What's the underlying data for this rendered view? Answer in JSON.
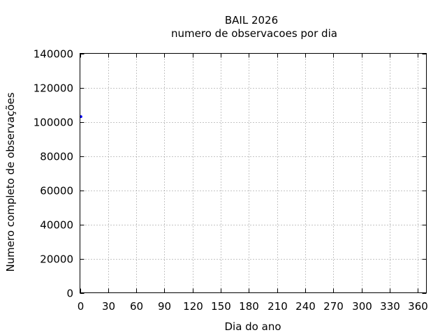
{
  "chart_data": {
    "type": "scatter",
    "title": "BAIL 2026",
    "subtitle": "numero de observacoes por dia",
    "xlabel": "Dia do ano",
    "ylabel": "Numero completo de observações",
    "xlim": [
      0,
      369
    ],
    "ylim": [
      0,
      140000
    ],
    "xticks": [
      0,
      30,
      60,
      90,
      120,
      150,
      180,
      210,
      240,
      270,
      300,
      330,
      360
    ],
    "yticks": [
      0,
      20000,
      40000,
      60000,
      80000,
      100000,
      120000,
      140000
    ],
    "grid": true,
    "points": [
      {
        "x": 1,
        "y": 103000
      }
    ],
    "point_color": "#0000ff"
  }
}
